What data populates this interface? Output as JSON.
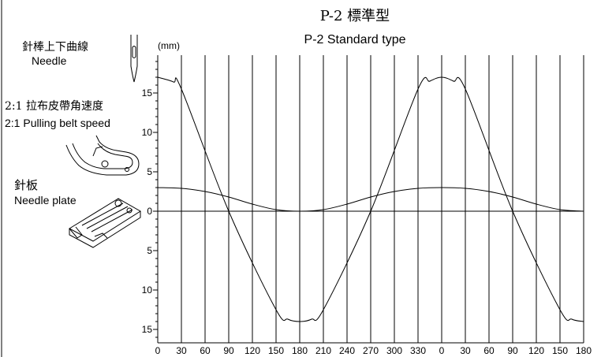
{
  "chart_data": {
    "type": "line",
    "title_zh": "P-2 標準型",
    "title": "P-2 Standard type",
    "unit": "(mm)",
    "x_ticks": [
      "0",
      "30",
      "60",
      "90",
      "120",
      "150",
      "180",
      "210",
      "240",
      "270",
      "300",
      "330",
      "0",
      "30",
      "60",
      "90",
      "120",
      "150",
      "180"
    ],
    "x_domain": [
      0,
      540
    ],
    "y_upper_ticks": [
      "15",
      "10",
      "5",
      "0"
    ],
    "y_lower_ticks": [
      "5",
      "10",
      "15"
    ],
    "grid_vertical": true,
    "series": [
      {
        "name_zh": "針棒上下曲線",
        "name": "Needle",
        "x": [
          0,
          20,
          30,
          90,
          150,
          165,
          180,
          195,
          210,
          270,
          330,
          345,
          360,
          375,
          390,
          450,
          510,
          525,
          540
        ],
        "y": [
          17,
          16.4,
          15.5,
          0,
          -12.5,
          -13.7,
          -14,
          -13.7,
          -12.5,
          0,
          15.5,
          16.5,
          17,
          16.5,
          15.5,
          0,
          -12.5,
          -13.7,
          -14
        ]
      },
      {
        "name_zh": "2:1 拉布皮帶角速度",
        "name": "2:1 Pulling belt speed",
        "x": [
          0,
          30,
          60,
          90,
          120,
          150,
          180,
          210,
          240,
          270,
          300,
          330,
          360,
          390,
          420,
          450,
          480,
          510,
          540
        ],
        "y": [
          3,
          2.9,
          2.5,
          1.8,
          0.9,
          0.2,
          0,
          0.2,
          0.9,
          1.8,
          2.5,
          2.9,
          3,
          2.9,
          2.5,
          1.8,
          0.9,
          0.2,
          0
        ]
      }
    ],
    "plate_label_zh": "針板",
    "plate_label": "Needle plate"
  }
}
